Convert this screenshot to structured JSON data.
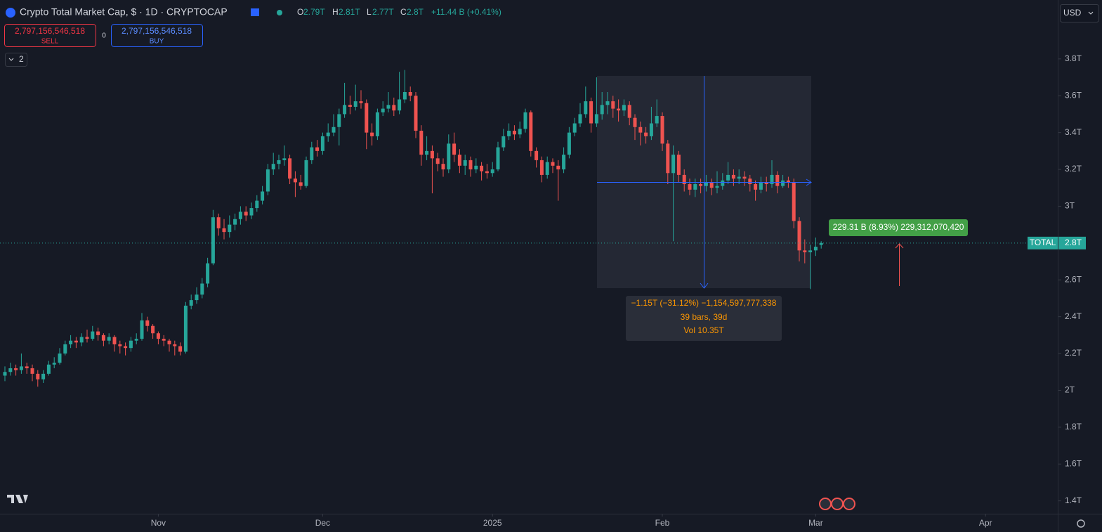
{
  "header": {
    "title": "Crypto Total Market Cap, $ · 1D · CRYPTOCAP",
    "o_key": "O",
    "o": "2.79T",
    "h_key": "H",
    "h": "2.81T",
    "l_key": "L",
    "l": "2.77T",
    "c_key": "C",
    "c": "2.8T",
    "change": "+11.44 B (+0.41%)"
  },
  "trade": {
    "sell_price": "2,797,156,546,518",
    "sell": "SELL",
    "spread": "0",
    "buy_price": "2,797,156,546,518",
    "buy": "BUY"
  },
  "indicators_count": "2",
  "currency": "USD",
  "measure_main": {
    "line1": "−1.15T (−31.12%) −1,154,597,777,338",
    "line2": "39 bars, 39d",
    "line3": "Vol 10.35T"
  },
  "measure_second": "229.31 B (8.93%) 229,312,070,420",
  "chart_data": {
    "type": "candlestick",
    "up_color": "#26a69a",
    "down_color": "#ef5350",
    "ylim": [
      1.33,
      4.12
    ],
    "yticks": [
      {
        "value": 1.4,
        "label": "1.4T"
      },
      {
        "value": 1.6,
        "label": "1.6T"
      },
      {
        "value": 1.8,
        "label": "1.8T"
      },
      {
        "value": 2,
        "label": "2T"
      },
      {
        "value": 2.2,
        "label": "2.2T"
      },
      {
        "value": 2.4,
        "label": "2.4T"
      },
      {
        "value": 2.6,
        "label": "2.6T"
      },
      {
        "value": 2.8,
        "label": "2.8T"
      },
      {
        "value": 3,
        "label": "3T"
      },
      {
        "value": 3.2,
        "label": "3.2T"
      },
      {
        "value": 3.4,
        "label": "3.4T"
      },
      {
        "value": 3.6,
        "label": "3.6T"
      },
      {
        "value": 3.8,
        "label": "3.8T"
      }
    ],
    "xticks": [
      {
        "value": 28,
        "label": "Nov"
      },
      {
        "value": 58,
        "label": "Dec"
      },
      {
        "value": 89,
        "label": "2025"
      },
      {
        "value": 120,
        "label": "Feb"
      },
      {
        "value": 148,
        "label": "Mar"
      },
      {
        "value": 179,
        "label": "Apr"
      }
    ],
    "price_line": {
      "name": "TOTAL",
      "value": 2.8,
      "label": "2.8T"
    },
    "open": [
      2.08,
      2.1,
      2.12,
      2.11,
      2.13,
      2.12,
      2.09,
      2.06,
      2.09,
      2.14,
      2.15,
      2.2,
      2.25,
      2.27,
      2.26,
      2.29,
      2.28,
      2.32,
      2.3,
      2.27,
      2.29,
      2.25,
      2.24,
      2.23,
      2.27,
      2.28,
      2.38,
      2.35,
      2.31,
      2.28,
      2.27,
      2.25,
      2.24,
      2.21,
      2.46,
      2.49,
      2.52,
      2.58,
      2.69,
      2.94,
      2.88,
      2.86,
      2.9,
      2.93,
      2.97,
      2.95,
      2.99,
      3.03,
      3.08,
      3.2,
      3.23,
      3.25,
      3.26,
      3.15,
      3.13,
      3.11,
      3.25,
      3.32,
      3.3,
      3.38,
      3.4,
      3.43,
      3.5,
      3.55,
      3.54,
      3.57,
      3.56,
      3.4,
      3.38,
      3.51,
      3.53,
      3.55,
      3.52,
      3.58,
      3.62,
      3.6,
      3.41,
      3.28,
      3.3,
      3.26,
      3.23,
      3.2,
      3.34,
      3.28,
      3.22,
      3.25,
      3.2,
      3.22,
      3.19,
      3.18,
      3.2,
      3.32,
      3.38,
      3.41,
      3.39,
      3.42,
      3.51,
      3.3,
      3.25,
      3.17,
      3.24,
      3.22,
      3.2,
      3.28,
      3.4,
      3.45,
      3.5,
      3.57,
      3.45,
      3.5,
      3.55,
      3.57,
      3.53,
      3.52,
      3.55,
      3.48,
      3.43,
      3.4,
      3.38,
      3.45,
      3.49,
      3.34,
      3.18,
      3.28,
      3.17,
      3.12,
      3.09,
      3.12,
      3.11,
      3.13,
      3.1,
      3.11,
      3.14,
      3.17,
      3.15,
      3.16,
      3.15,
      3.12,
      3.09,
      3.13,
      3.12,
      3.17,
      3.11,
      3.14,
      3.13,
      2.92,
      2.76,
      2.75,
      2.76,
      2.79
    ],
    "high": [
      2.13,
      2.15,
      2.14,
      2.2,
      2.15,
      2.14,
      2.11,
      2.11,
      2.16,
      2.18,
      2.23,
      2.27,
      2.3,
      2.29,
      2.31,
      2.33,
      2.35,
      2.34,
      2.31,
      2.31,
      2.3,
      2.27,
      2.26,
      2.29,
      2.31,
      2.42,
      2.4,
      2.36,
      2.32,
      2.3,
      2.28,
      2.27,
      2.26,
      2.48,
      2.52,
      2.56,
      2.61,
      2.72,
      2.98,
      2.96,
      2.93,
      2.95,
      2.96,
      3.0,
      3.0,
      3.02,
      3.06,
      3.11,
      3.23,
      3.29,
      3.28,
      3.33,
      3.28,
      3.19,
      3.17,
      3.27,
      3.35,
      3.36,
      3.4,
      3.45,
      3.5,
      3.53,
      3.67,
      3.6,
      3.66,
      3.63,
      3.58,
      3.45,
      3.53,
      3.57,
      3.62,
      3.59,
      3.73,
      3.74,
      3.65,
      3.62,
      3.44,
      3.38,
      3.33,
      3.29,
      3.26,
      3.39,
      3.4,
      3.31,
      3.28,
      3.27,
      3.26,
      3.24,
      3.23,
      3.24,
      3.35,
      3.42,
      3.45,
      3.44,
      3.46,
      3.53,
      3.52,
      3.32,
      3.27,
      3.27,
      3.26,
      3.25,
      3.32,
      3.43,
      3.48,
      3.56,
      3.65,
      3.59,
      3.7,
      3.62,
      3.62,
      3.6,
      3.58,
      3.58,
      3.57,
      3.5,
      3.46,
      3.43,
      3.54,
      3.58,
      3.51,
      3.36,
      3.33,
      3.3,
      3.2,
      3.15,
      3.15,
      3.15,
      3.17,
      3.15,
      3.19,
      3.18,
      3.24,
      3.2,
      3.2,
      3.19,
      3.17,
      3.14,
      3.16,
      3.16,
      3.25,
      3.19,
      3.17,
      3.16,
      3.15,
      2.94,
      2.82,
      2.79,
      2.83,
      2.81
    ],
    "low": [
      2.05,
      2.08,
      2.08,
      2.09,
      2.09,
      2.05,
      2.02,
      2.04,
      2.08,
      2.12,
      2.14,
      2.19,
      2.23,
      2.23,
      2.24,
      2.26,
      2.27,
      2.27,
      2.24,
      2.25,
      2.21,
      2.2,
      2.19,
      2.21,
      2.25,
      2.27,
      2.32,
      2.28,
      2.25,
      2.24,
      2.21,
      2.19,
      2.19,
      2.2,
      2.44,
      2.47,
      2.5,
      2.56,
      2.68,
      2.84,
      2.82,
      2.83,
      2.87,
      2.9,
      2.92,
      2.93,
      2.97,
      3.01,
      3.06,
      3.17,
      3.2,
      3.22,
      3.12,
      3.05,
      3.09,
      3.1,
      3.23,
      3.27,
      3.28,
      3.35,
      3.38,
      3.33,
      3.48,
      3.5,
      3.52,
      3.53,
      3.31,
      3.33,
      3.36,
      3.49,
      3.51,
      3.49,
      3.5,
      3.56,
      3.57,
      3.37,
      3.22,
      3.25,
      3.07,
      3.19,
      3.16,
      3.18,
      3.24,
      3.18,
      3.17,
      3.16,
      3.18,
      3.14,
      3.15,
      3.16,
      3.19,
      3.3,
      3.36,
      3.36,
      3.37,
      3.4,
      3.27,
      3.21,
      3.13,
      3.15,
      3.18,
      3.03,
      3.18,
      3.26,
      3.38,
      3.43,
      3.48,
      3.4,
      3.43,
      3.47,
      3.5,
      3.48,
      3.46,
      3.49,
      3.44,
      3.36,
      3.33,
      3.34,
      3.36,
      3.43,
      3.3,
      3.12,
      2.81,
      3.13,
      3.08,
      3.06,
      3.05,
      3.07,
      3.08,
      3.06,
      3.07,
      3.09,
      3.12,
      3.11,
      3.12,
      3.11,
      3.08,
      3.03,
      3.07,
      3.08,
      3.1,
      3.07,
      3.1,
      3.1,
      2.88,
      2.7,
      2.69,
      2.55,
      2.73,
      2.77
    ],
    "close": [
      2.1,
      2.12,
      2.11,
      2.13,
      2.12,
      2.09,
      2.06,
      2.09,
      2.14,
      2.15,
      2.2,
      2.25,
      2.27,
      2.26,
      2.29,
      2.28,
      2.32,
      2.3,
      2.27,
      2.29,
      2.25,
      2.24,
      2.23,
      2.27,
      2.28,
      2.38,
      2.35,
      2.31,
      2.28,
      2.27,
      2.25,
      2.24,
      2.21,
      2.46,
      2.49,
      2.52,
      2.58,
      2.69,
      2.94,
      2.88,
      2.86,
      2.9,
      2.93,
      2.97,
      2.95,
      2.99,
      3.03,
      3.08,
      3.2,
      3.23,
      3.25,
      3.26,
      3.15,
      3.13,
      3.11,
      3.25,
      3.32,
      3.3,
      3.38,
      3.4,
      3.43,
      3.5,
      3.55,
      3.54,
      3.57,
      3.56,
      3.4,
      3.38,
      3.51,
      3.53,
      3.55,
      3.52,
      3.58,
      3.62,
      3.6,
      3.41,
      3.28,
      3.3,
      3.26,
      3.23,
      3.2,
      3.34,
      3.28,
      3.22,
      3.25,
      3.2,
      3.22,
      3.19,
      3.18,
      3.2,
      3.32,
      3.38,
      3.41,
      3.39,
      3.42,
      3.51,
      3.3,
      3.25,
      3.17,
      3.24,
      3.22,
      3.2,
      3.28,
      3.4,
      3.45,
      3.5,
      3.57,
      3.45,
      3.5,
      3.55,
      3.57,
      3.53,
      3.52,
      3.55,
      3.48,
      3.43,
      3.4,
      3.38,
      3.45,
      3.49,
      3.34,
      3.18,
      3.28,
      3.17,
      3.12,
      3.09,
      3.12,
      3.11,
      3.13,
      3.1,
      3.11,
      3.14,
      3.17,
      3.15,
      3.16,
      3.15,
      3.12,
      3.09,
      3.13,
      3.12,
      3.17,
      3.11,
      3.14,
      3.13,
      2.92,
      2.76,
      2.75,
      2.76,
      2.78,
      2.8
    ]
  }
}
